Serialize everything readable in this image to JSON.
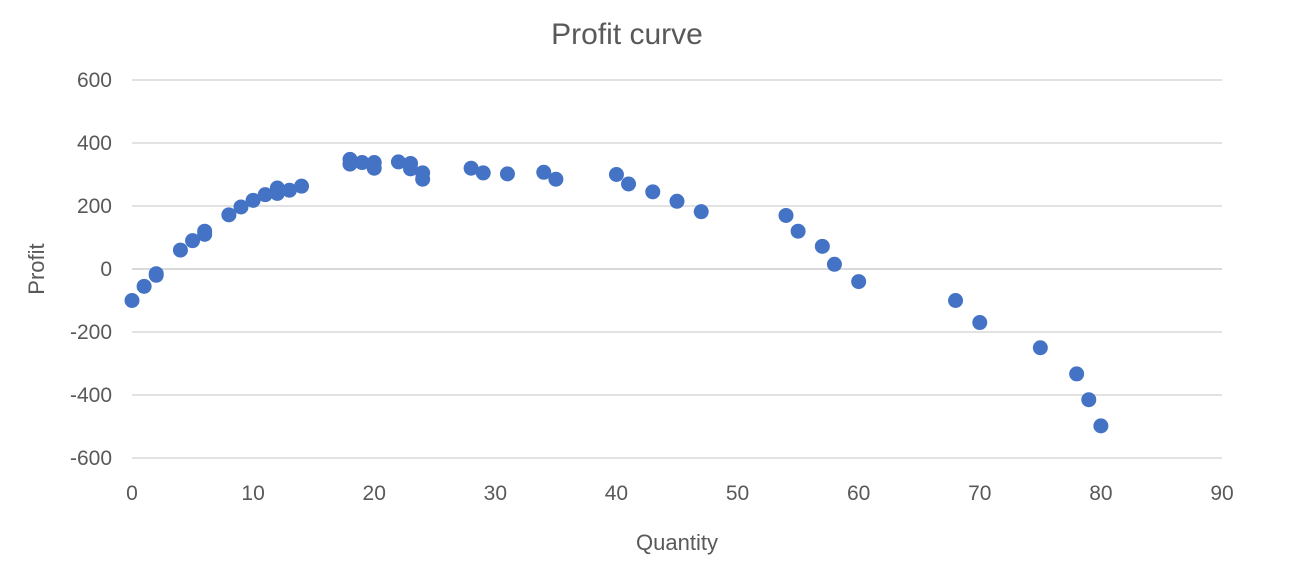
{
  "chart_data": {
    "type": "scatter",
    "title": "Profit curve",
    "xlabel": "Quantity",
    "ylabel": "Profit",
    "xlim": [
      0,
      90
    ],
    "ylim": [
      -600,
      600
    ],
    "x_ticks": [
      0,
      10,
      20,
      30,
      40,
      50,
      60,
      70,
      80,
      90
    ],
    "y_ticks": [
      -600,
      -400,
      -200,
      0,
      200,
      400,
      600
    ],
    "grid": "horizontal",
    "legend": "none",
    "marker_color": "#4472c4",
    "series": [
      {
        "points": [
          {
            "x": 0,
            "y": -100
          },
          {
            "x": 1,
            "y": -55
          },
          {
            "x": 2,
            "y": -15
          },
          {
            "x": 2,
            "y": -20
          },
          {
            "x": 4,
            "y": 60
          },
          {
            "x": 5,
            "y": 90
          },
          {
            "x": 6,
            "y": 110
          },
          {
            "x": 6,
            "y": 120
          },
          {
            "x": 8,
            "y": 172
          },
          {
            "x": 9,
            "y": 197
          },
          {
            "x": 10,
            "y": 218
          },
          {
            "x": 11,
            "y": 236
          },
          {
            "x": 12,
            "y": 240
          },
          {
            "x": 12,
            "y": 257
          },
          {
            "x": 13,
            "y": 250
          },
          {
            "x": 14,
            "y": 263
          },
          {
            "x": 18,
            "y": 333
          },
          {
            "x": 18,
            "y": 348
          },
          {
            "x": 19,
            "y": 338
          },
          {
            "x": 20,
            "y": 320
          },
          {
            "x": 20,
            "y": 338
          },
          {
            "x": 22,
            "y": 340
          },
          {
            "x": 23,
            "y": 318
          },
          {
            "x": 23,
            "y": 335
          },
          {
            "x": 24,
            "y": 285
          },
          {
            "x": 24,
            "y": 305
          },
          {
            "x": 28,
            "y": 320
          },
          {
            "x": 29,
            "y": 305
          },
          {
            "x": 31,
            "y": 302
          },
          {
            "x": 34,
            "y": 307
          },
          {
            "x": 35,
            "y": 285
          },
          {
            "x": 40,
            "y": 300
          },
          {
            "x": 41,
            "y": 270
          },
          {
            "x": 43,
            "y": 245
          },
          {
            "x": 45,
            "y": 215
          },
          {
            "x": 47,
            "y": 182
          },
          {
            "x": 54,
            "y": 170
          },
          {
            "x": 55,
            "y": 120
          },
          {
            "x": 57,
            "y": 72
          },
          {
            "x": 58,
            "y": 15
          },
          {
            "x": 60,
            "y": -40
          },
          {
            "x": 68,
            "y": -100
          },
          {
            "x": 70,
            "y": -170
          },
          {
            "x": 75,
            "y": -250
          },
          {
            "x": 78,
            "y": -333
          },
          {
            "x": 79,
            "y": -415
          },
          {
            "x": 80,
            "y": -498
          }
        ]
      }
    ]
  }
}
